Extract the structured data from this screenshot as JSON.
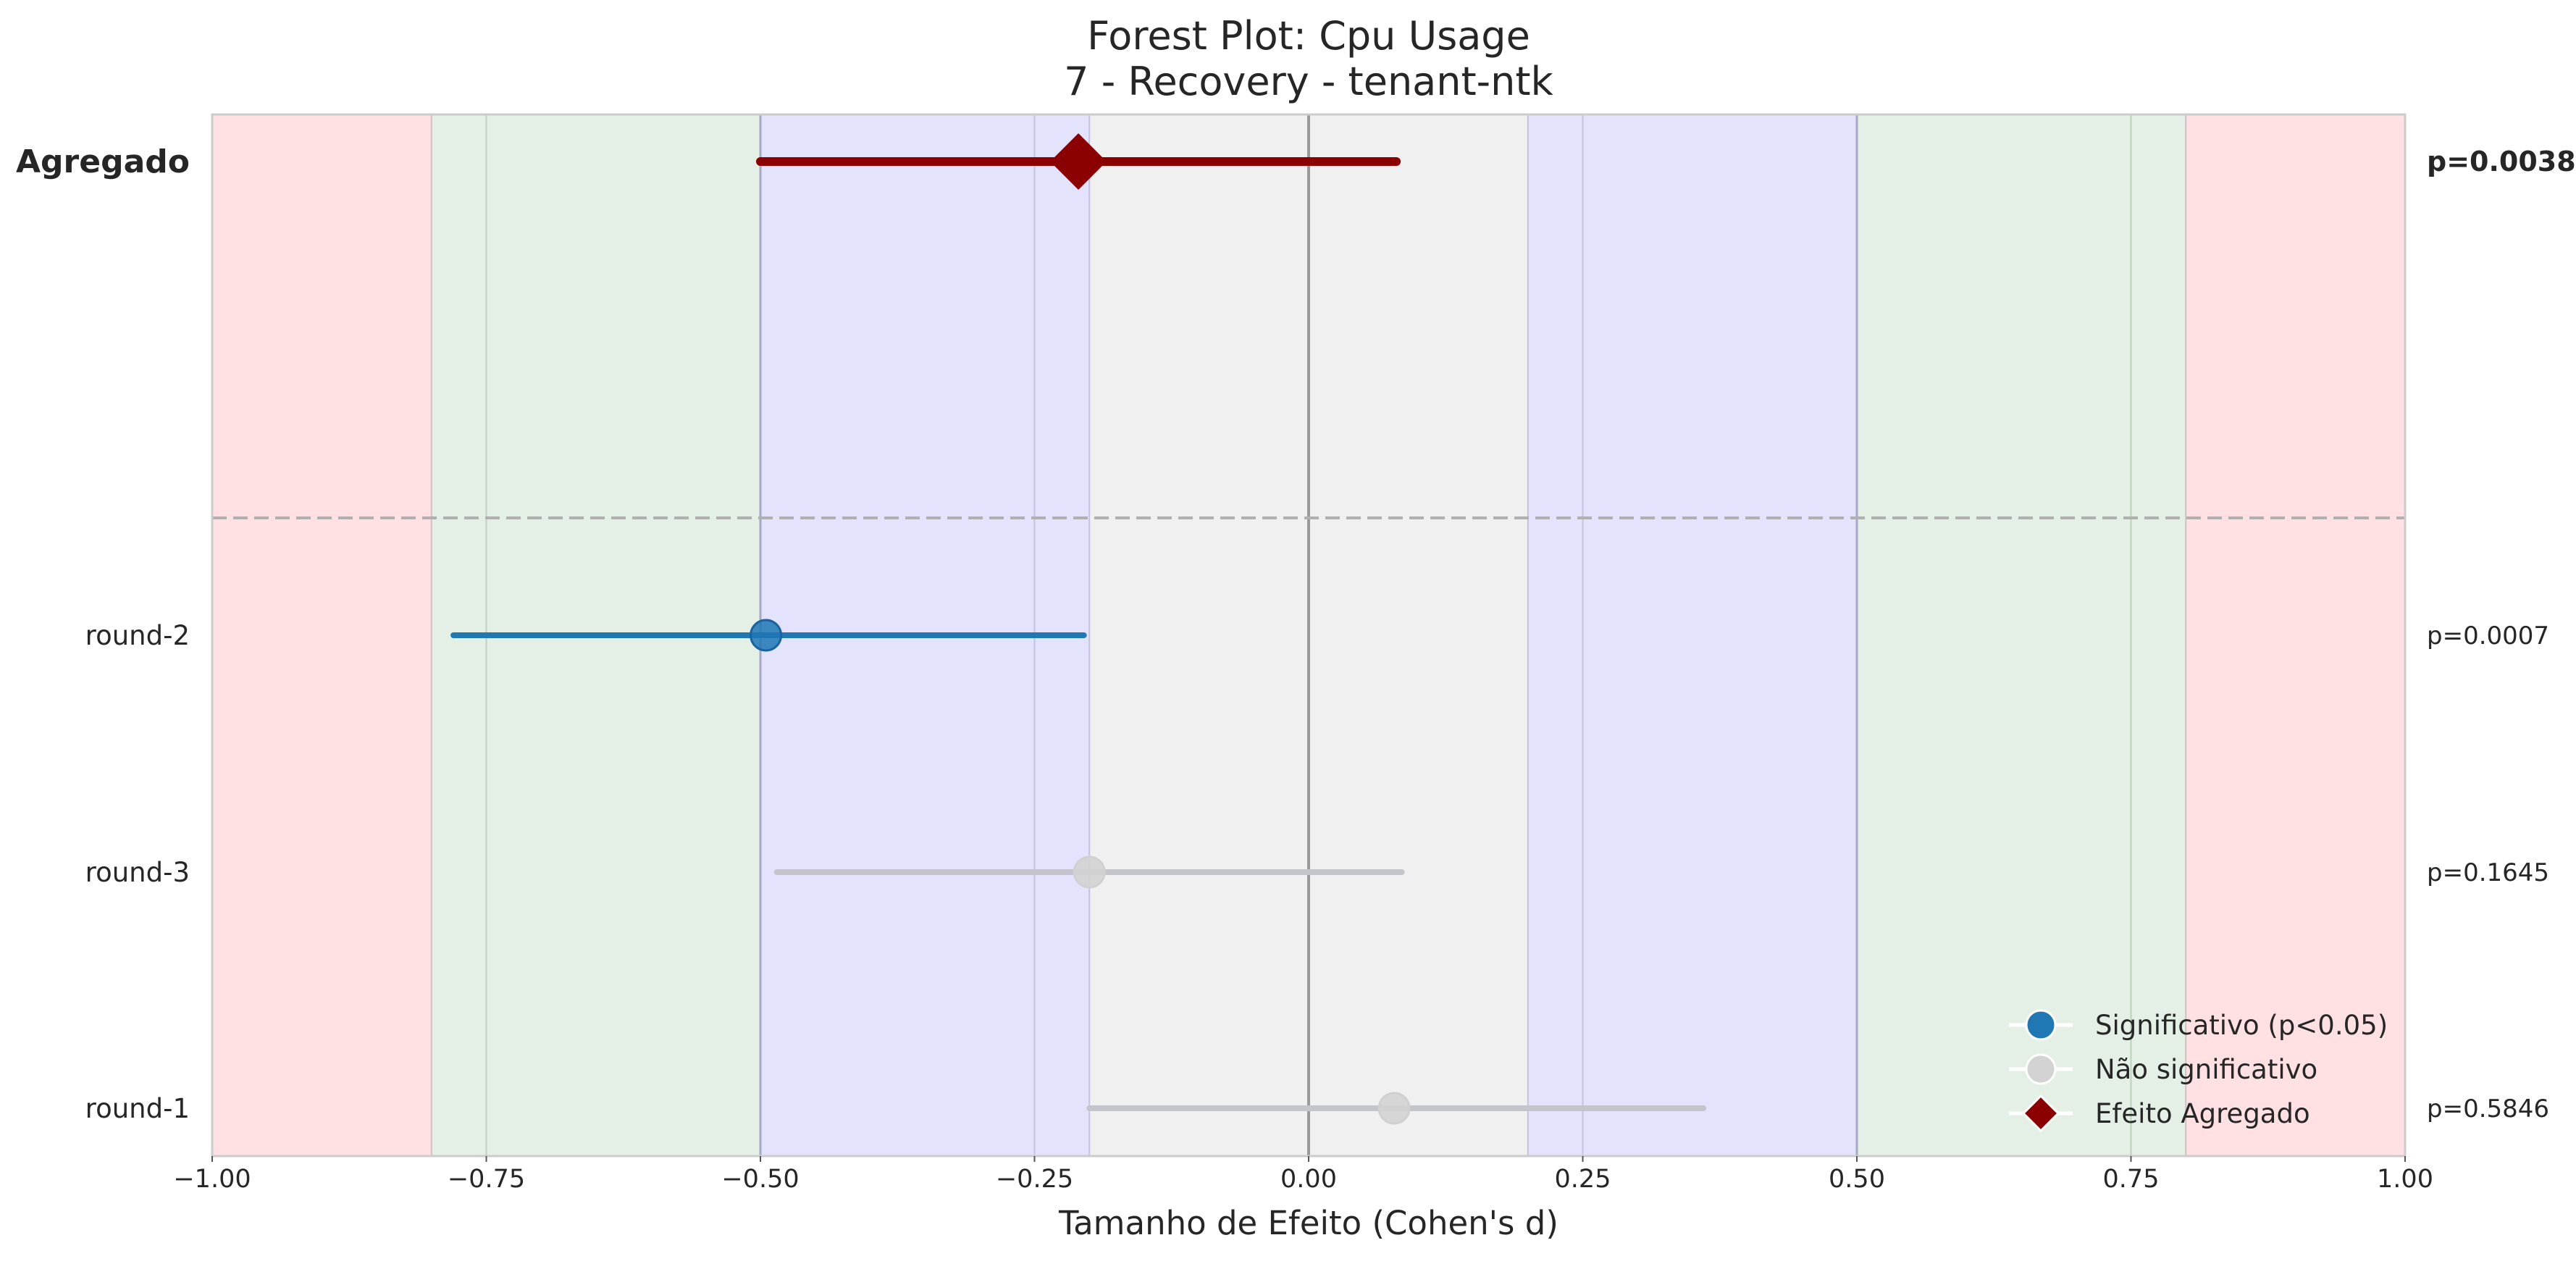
{
  "chart_data": {
    "type": "forest",
    "title": "Forest Plot: Cpu Usage",
    "subtitle": "7 - Recovery - tenant-ntk",
    "xlabel": "Tamanho de Efeito (Cohen's d)",
    "xlim": [
      -1.0,
      1.0
    ],
    "xticks": [
      -1.0,
      -0.75,
      -0.5,
      -0.25,
      0.0,
      0.25,
      0.5,
      0.75,
      1.0
    ],
    "xtick_labels": [
      "−1.00",
      "−0.75",
      "−0.50",
      "−0.25",
      "0.00",
      "0.25",
      "0.50",
      "0.75",
      "1.00"
    ],
    "effect_bands": [
      {
        "name": "large-negative",
        "from": -1.0,
        "to": -0.8,
        "color": "#ffe0e3"
      },
      {
        "name": "medium-negative",
        "from": -0.8,
        "to": -0.5,
        "color": "#e4f0e5"
      },
      {
        "name": "small-negative",
        "from": -0.5,
        "to": -0.2,
        "color": "#e3e3fd"
      },
      {
        "name": "negligible",
        "from": -0.2,
        "to": 0.2,
        "color": "#f0f0f0"
      },
      {
        "name": "small-positive",
        "from": 0.2,
        "to": 0.5,
        "color": "#e3e3fd"
      },
      {
        "name": "medium-positive",
        "from": 0.5,
        "to": 0.8,
        "color": "#e4f0e5"
      },
      {
        "name": "large-positive",
        "from": 0.8,
        "to": 1.0,
        "color": "#ffe0e3"
      }
    ],
    "aggregate": {
      "label": "Agregado",
      "effect": -0.21,
      "ci": [
        -0.5,
        0.08
      ],
      "p_label": "p=0.0038",
      "color": "#8b0000"
    },
    "rows": [
      {
        "label": "round-2",
        "effect": -0.495,
        "ci": [
          -0.78,
          -0.205
        ],
        "p_label": "p=0.0007",
        "significant": true
      },
      {
        "label": "round-3",
        "effect": -0.2,
        "ci": [
          -0.485,
          0.085
        ],
        "p_label": "p=0.1645",
        "significant": false
      },
      {
        "label": "round-1",
        "effect": 0.078,
        "ci": [
          -0.2,
          0.36
        ],
        "p_label": "p=0.5846",
        "significant": false
      }
    ],
    "colors": {
      "significant": "#1f77b4",
      "not_significant": "#d3d3d3",
      "aggregate": "#8b0000"
    },
    "legend": {
      "position": "lower-right",
      "items": [
        {
          "label": "Significativo (p<0.05)",
          "marker": "circle",
          "color": "#1f77b4"
        },
        {
          "label": "Não significativo",
          "marker": "circle",
          "color": "#d3d3d3"
        },
        {
          "label": "Efeito Agregado",
          "marker": "diamond",
          "color": "#8b0000"
        }
      ]
    }
  }
}
